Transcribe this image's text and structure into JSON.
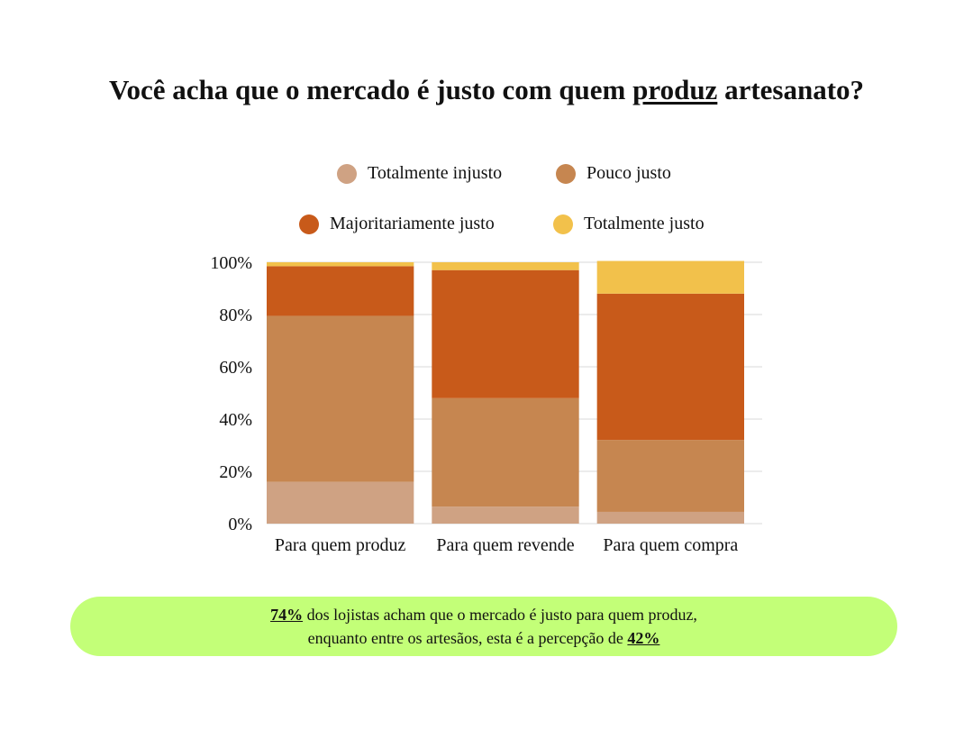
{
  "title": {
    "before": "Você acha que o mercado é justo com quem ",
    "emphasis": "produz",
    "after": " artesanato?"
  },
  "colors": {
    "totalmente_injusto": "#cfa283",
    "pouco_justo": "#c68650",
    "majoritariamente_justo": "#c85a1a",
    "totalmente_justo": "#f2c14b",
    "callout_bg": "#c3ff78"
  },
  "chart_data": {
    "type": "bar",
    "stacked": true,
    "categories": [
      "Para quem produz",
      "Para quem revende",
      "Para quem compra"
    ],
    "series": [
      {
        "name": "Totalmente injusto",
        "color": "#cfa283",
        "values": [
          16,
          6.5,
          4.5
        ]
      },
      {
        "name": "Pouco justo",
        "color": "#c68650",
        "values": [
          63.5,
          41.5,
          27.5
        ]
      },
      {
        "name": "Majoritariamente justo",
        "color": "#c85a1a",
        "values": [
          19,
          49,
          56
        ]
      },
      {
        "name": "Totalmente justo",
        "color": "#f2c14b",
        "values": [
          1.5,
          3,
          12.5
        ]
      }
    ],
    "ylim": [
      0,
      100
    ],
    "yticks": [
      "0%",
      "20%",
      "40%",
      "60%",
      "80%",
      "100%"
    ],
    "grid": true,
    "legend_position": "top"
  },
  "callout": {
    "line1_pct": "74%",
    "line1_text": " dos lojistas acham que o mercado é justo para quem produz,",
    "line2_text": "enquanto entre os artesãos, esta é a percepção de ",
    "line2_pct": "42%"
  }
}
